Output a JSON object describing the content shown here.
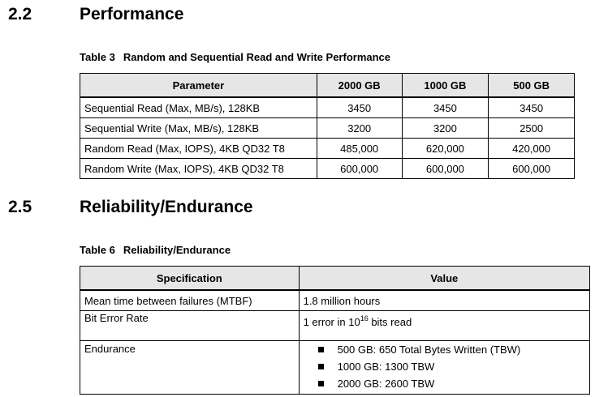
{
  "section_perf": {
    "number": "2.2",
    "title": "Performance"
  },
  "table3": {
    "caption_label": "Table 3",
    "caption_title": "Random and Sequential Read and Write Performance",
    "headers": [
      "Parameter",
      "2000 GB",
      "1000 GB",
      "500 GB"
    ],
    "rows": [
      [
        "Sequential Read (Max, MB/s), 128KB",
        "3450",
        "3450",
        "3450"
      ],
      [
        "Sequential Write (Max, MB/s), 128KB",
        "3200",
        "3200",
        "2500"
      ],
      [
        "Random Read (Max, IOPS), 4KB QD32 T8",
        "485,000",
        "620,000",
        "420,000"
      ],
      [
        "Random Write (Max, IOPS), 4KB QD32 T8",
        "600,000",
        "600,000",
        "600,000"
      ]
    ]
  },
  "section_rel": {
    "number": "2.5",
    "title": "Reliability/Endurance"
  },
  "table6": {
    "caption_label": "Table 6",
    "caption_title": "Reliability/Endurance",
    "headers": [
      "Specification",
      "Value"
    ],
    "mtbf": {
      "label": "Mean time between failures (MTBF)",
      "value": "1.8 million hours"
    },
    "ber": {
      "label": "Bit Error Rate",
      "prefix": "1 error in 10",
      "exponent": "16",
      "suffix": " bits read"
    },
    "endurance": {
      "label": "Endurance",
      "items": [
        "500 GB: 650 Total Bytes Written (TBW)",
        "1000 GB: 1300 TBW",
        "2000 GB: 2600 TBW"
      ]
    }
  }
}
